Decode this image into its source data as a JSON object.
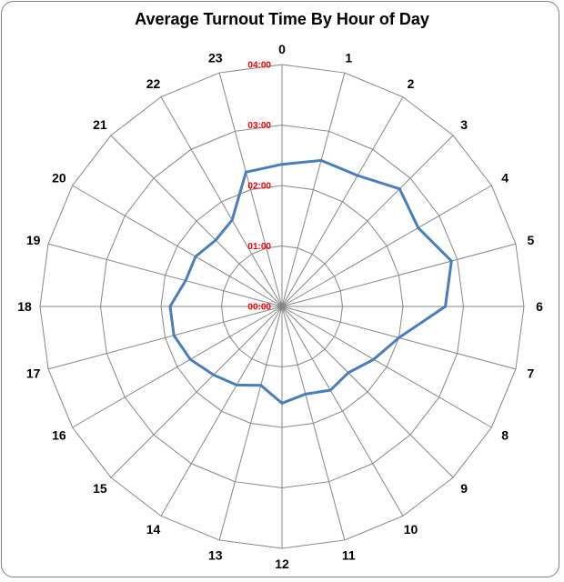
{
  "chart_data": {
    "type": "radar",
    "title": "Average Turnout Time By Hour of Day",
    "categories": [
      "0",
      "1",
      "2",
      "3",
      "4",
      "5",
      "6",
      "7",
      "8",
      "9",
      "10",
      "11",
      "12",
      "13",
      "14",
      "15",
      "16",
      "17",
      "18",
      "19",
      "20",
      "21",
      "22",
      "23"
    ],
    "series": [
      {
        "color": "#4a7ebb",
        "values": [
          2.35,
          2.5,
          2.5,
          2.75,
          2.6,
          2.9,
          2.7,
          2.0,
          1.75,
          1.55,
          1.6,
          1.5,
          1.6,
          1.35,
          1.5,
          1.6,
          1.75,
          1.85,
          1.85,
          1.65,
          1.65,
          1.55,
          1.65,
          2.3
        ]
      }
    ],
    "radial_axis": {
      "range": [
        0,
        4
      ],
      "tick_labels": [
        "00:00",
        "01:00",
        "02:00",
        "03:00",
        "04:00"
      ],
      "tick_color": "#ff0000"
    },
    "grid": true,
    "legend": "none"
  }
}
